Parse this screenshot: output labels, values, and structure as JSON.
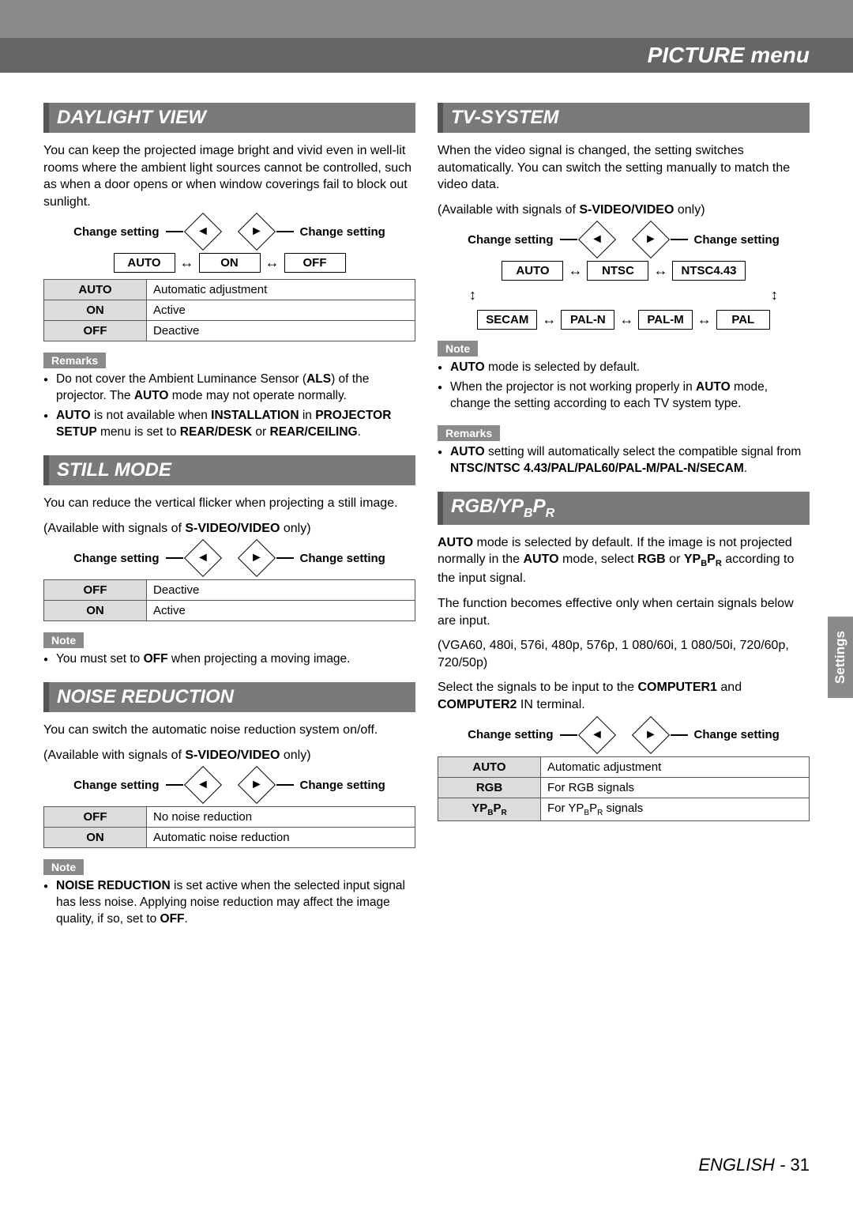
{
  "page": {
    "title": "PICTURE menu",
    "side_tab": "Settings",
    "footer_lang": "ENGLISH",
    "footer_sep": " - ",
    "footer_page": "31"
  },
  "labels": {
    "change_setting": "Change setting",
    "note": "Note",
    "remarks": "Remarks"
  },
  "daylight": {
    "title": "DAYLIGHT VIEW",
    "intro": "You can keep the projected image bright and vivid even in well-lit rooms where the ambient light sources cannot be controlled, such as when a door opens or when window coverings fail to block out sunlight.",
    "options": [
      "AUTO",
      "ON",
      "OFF"
    ],
    "table": [
      [
        "AUTO",
        "Automatic adjustment"
      ],
      [
        "ON",
        "Active"
      ],
      [
        "OFF",
        "Deactive"
      ]
    ],
    "remarks": [
      "Do not cover the Ambient Luminance Sensor (<b>ALS</b>) of the projector. The <b>AUTO</b> mode may not operate normally.",
      "<b>AUTO</b> is not available when <b>INSTALLATION</b> in <b>PROJECTOR SETUP</b> menu is set to <b>REAR/DESK</b> or <b>REAR/CEILING</b>."
    ]
  },
  "still": {
    "title": "STILL MODE",
    "intro": "You can reduce the vertical flicker when projecting a still image.",
    "avail": "(Available with signals of <b>S-VIDEO/VIDEO</b> only)",
    "table": [
      [
        "OFF",
        "Deactive"
      ],
      [
        "ON",
        "Active"
      ]
    ],
    "notes": [
      "You must set to <b>OFF</b> when projecting a moving image."
    ]
  },
  "noise": {
    "title": "NOISE REDUCTION",
    "intro": "You can switch the automatic noise reduction system on/off.",
    "avail": "(Available with signals of <b>S-VIDEO/VIDEO</b> only)",
    "table": [
      [
        "OFF",
        "No noise reduction"
      ],
      [
        "ON",
        "Automatic noise reduction"
      ]
    ],
    "notes": [
      "<b>NOISE REDUCTION</b> is set active when the selected input signal has less noise. Applying noise reduction may affect the image quality, if so, set to <b>OFF</b>."
    ]
  },
  "tv": {
    "title": "TV-SYSTEM",
    "intro": "When the video signal is changed, the setting switches automatically. You can switch the setting manually to match the video data.",
    "avail": "(Available with signals of <b>S-VIDEO/VIDEO</b> only)",
    "row1": [
      "AUTO",
      "NTSC",
      "NTSC4.43"
    ],
    "row2": [
      "SECAM",
      "PAL-N",
      "PAL-M",
      "PAL"
    ],
    "notes": [
      "<b>AUTO</b> mode is selected by default.",
      "When the projector is not working properly in <b>AUTO</b> mode, change the setting according to each TV system type."
    ],
    "remarks": [
      "<b>AUTO</b> setting will automatically select the compatible signal from <b>NTSC/NTSC 4.43/PAL/PAL60/PAL-M/PAL-N/SECAM</b>."
    ]
  },
  "rgb": {
    "title": "RGB/YP<sub>B</sub>P<sub>R</sub>",
    "intro": "<b>AUTO</b> mode is selected by default. If the image is not projected normally in the <b>AUTO</b> mode, select <b>RGB</b> or <b>YP<sub>B</sub>P<sub>R</sub></b> according to the input signal.",
    "p2": "The function becomes effective only when certain signals below are input.",
    "p3": "(VGA60, 480i, 576i, 480p, 576p, 1 080/60i, 1 080/50i, 720/60p, 720/50p)",
    "p4": "Select the signals to be input to the <b>COMPUTER1</b> and <b>COMPUTER2</b> IN terminal.",
    "table": [
      [
        "AUTO",
        "Automatic adjustment"
      ],
      [
        "RGB",
        "For RGB signals"
      ],
      [
        "YP<sub>B</sub>P<sub>R</sub>",
        "For YP<sub>B</sub>P<sub>R</sub> signals"
      ]
    ]
  }
}
